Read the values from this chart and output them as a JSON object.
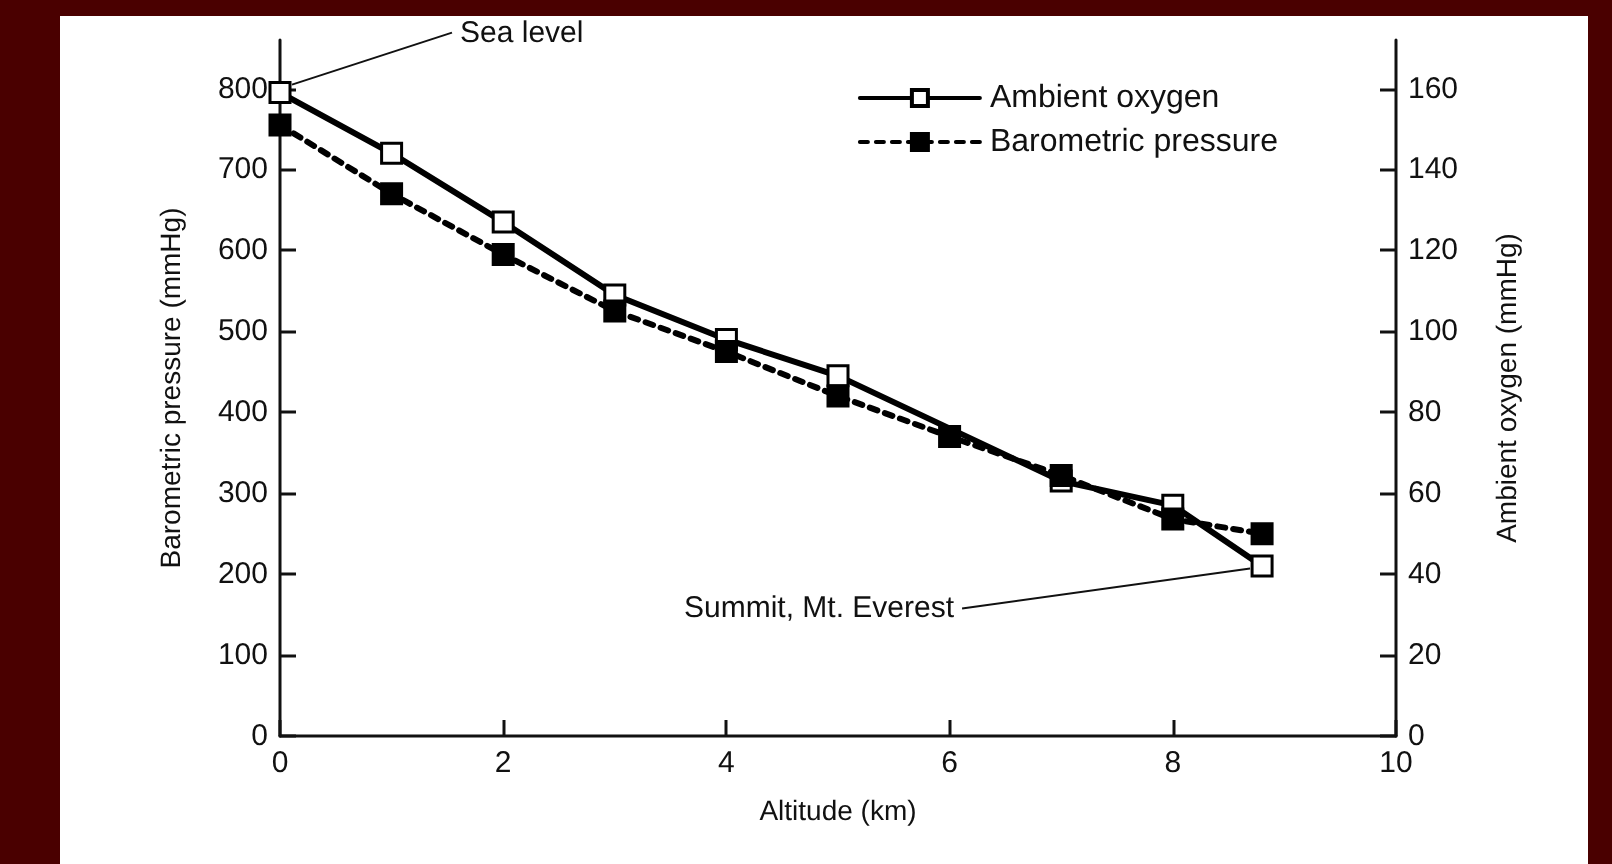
{
  "chart_data": {
    "type": "line",
    "xlabel": "Altitude (km)",
    "ylabel": "Barometric pressure (mmHg)",
    "y2label": "Ambient oxygen (mmHg)",
    "x": [
      0,
      1,
      2,
      3,
      4,
      5,
      6,
      7,
      8,
      8.8
    ],
    "series": [
      {
        "name": "Ambient oxygen",
        "color": "#000000",
        "axis": "y2",
        "line_style": "solid",
        "marker": "square",
        "values": [
          159,
          144,
          127,
          109,
          98,
          89,
          null,
          63,
          57,
          42
        ]
      },
      {
        "name": "Barometric pressure",
        "color": "#000000",
        "line_style": "dashed",
        "marker": "square",
        "values": [
          755,
          670,
          595,
          525,
          475,
          420,
          370,
          322,
          268,
          250
        ]
      }
    ],
    "xlim": [
      0,
      10
    ],
    "xticks": [
      0,
      2,
      4,
      6,
      8,
      10
    ],
    "ylim": [
      0,
      860
    ],
    "yticks": [
      0,
      100,
      200,
      300,
      400,
      500,
      600,
      700,
      800
    ],
    "y2lim": [
      0,
      172
    ],
    "y2ticks": [
      0,
      20,
      40,
      60,
      80,
      100,
      120,
      140,
      160
    ],
    "annotations": [
      {
        "text": "Sea level",
        "x": 0,
        "y": 795
      },
      {
        "text": "Summit, Mt. Everest",
        "x": 8.8,
        "y": 212
      }
    ],
    "legend": "top right",
    "grid": false
  }
}
